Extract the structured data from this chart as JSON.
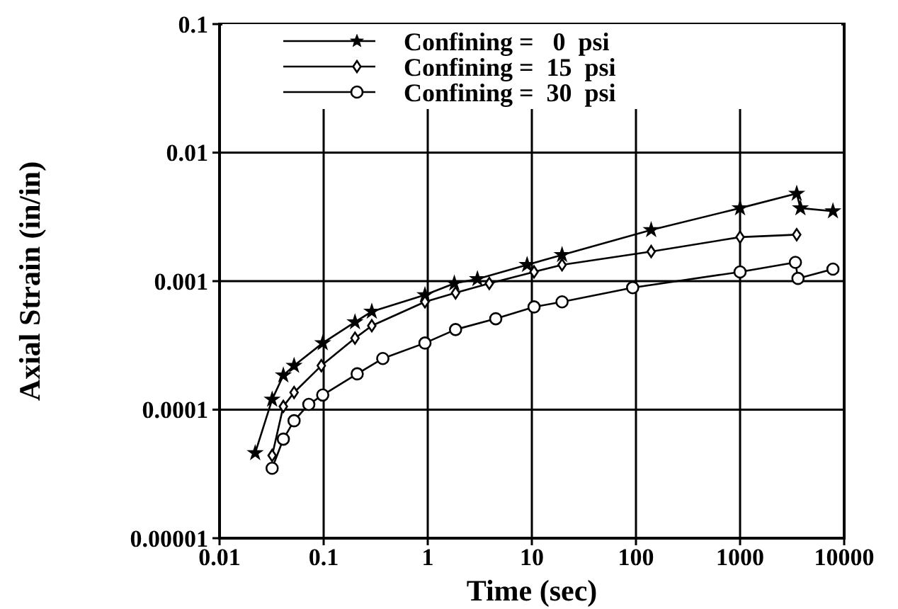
{
  "chart_data": {
    "type": "line",
    "xlabel": "Time (sec)",
    "ylabel": "Axial Strain (in/in)",
    "log": "xy",
    "grid": true,
    "legend": "top",
    "line_style": "solid",
    "xlim": [
      0.01,
      10000
    ],
    "ylim": [
      1e-05,
      0.1
    ],
    "xticks": [
      0.01,
      0.1,
      1,
      10,
      100,
      1000,
      10000
    ],
    "yticks": [
      {
        "value": 1e-05,
        "label": "0.00001"
      },
      0.0001,
      0.001,
      0.01,
      0.1
    ],
    "series": [
      {
        "name": "Confining =   0  psi",
        "color": "#000000",
        "marker": "star",
        "x": [
          0.022,
          0.032,
          0.041,
          0.052,
          0.098,
          0.2,
          0.29,
          0.94,
          1.8,
          3,
          9,
          19.5,
          140,
          1000,
          3500,
          3800,
          7800
        ],
        "values": [
          4.6e-05,
          0.00012,
          0.000185,
          0.00022,
          0.00033,
          0.00048,
          0.00058,
          0.00078,
          0.00096,
          0.00104,
          0.00134,
          0.0016,
          0.0025,
          0.0037,
          0.0048,
          0.0037,
          0.0035
        ]
      },
      {
        "name": "Confining =  15  psi",
        "color": "#000000",
        "marker": "diamond",
        "x": [
          0.032,
          0.041,
          0.052,
          0.095,
          0.2,
          0.29,
          0.94,
          1.85,
          3.9,
          10.5,
          19.5,
          140,
          1000,
          3500
        ],
        "values": [
          4.4e-05,
          0.000106,
          0.000136,
          0.00022,
          0.00036,
          0.00045,
          0.00069,
          0.00081,
          0.00096,
          0.00118,
          0.00134,
          0.0017,
          0.0022,
          0.0023
        ]
      },
      {
        "name": "Confining =  30  psi",
        "color": "#000000",
        "marker": "circle",
        "x": [
          0.032,
          0.041,
          0.052,
          0.072,
          0.098,
          0.21,
          0.37,
          0.94,
          1.85,
          4.5,
          10.5,
          19.5,
          93,
          1000,
          3400,
          3600,
          7800
        ],
        "values": [
          3.5e-05,
          5.9e-05,
          8.2e-05,
          0.00011,
          0.00013,
          0.00019,
          0.00025,
          0.00033,
          0.00042,
          0.00051,
          0.00063,
          0.00069,
          0.00089,
          0.00118,
          0.0014,
          0.00105,
          0.00124
        ]
      }
    ]
  }
}
